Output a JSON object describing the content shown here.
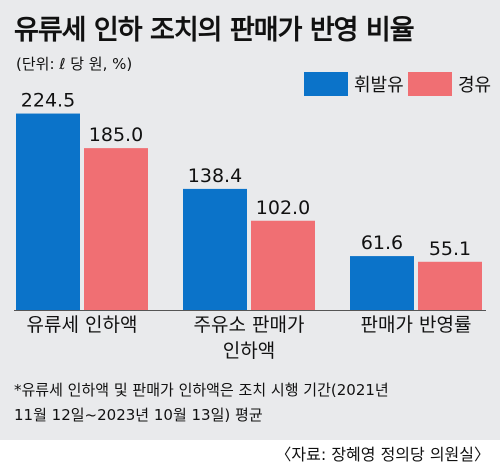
{
  "header": {
    "title": "유류세 인하 조치의 판매가 반영 비율",
    "unit": "(단위: ℓ 당 원, %)"
  },
  "legend": {
    "items": [
      {
        "label": "휘발유",
        "color": "#0b73c9"
      },
      {
        "label": "경유",
        "color": "#f06f73"
      }
    ]
  },
  "chart_data": {
    "type": "bar",
    "categories": [
      [
        "유류세 인하액"
      ],
      [
        "주유소 판매가",
        "인하액"
      ],
      [
        "판매가 반영률"
      ]
    ],
    "series": [
      {
        "name": "휘발유",
        "color": "#0b73c9",
        "values": [
          224.5,
          138.4,
          61.6
        ],
        "labels": [
          "224.5",
          "138.4",
          "61.6"
        ]
      },
      {
        "name": "경유",
        "color": "#f06f73",
        "values": [
          185.0,
          102.0,
          55.1
        ],
        "labels": [
          "185.0",
          "102.0",
          "55.1"
        ]
      }
    ],
    "title": "유류세 인하 조치의 판매가 반영 비율",
    "xlabel": "",
    "ylabel": "",
    "grid": false,
    "legend_position": "top-right"
  },
  "footnote": {
    "line1": "*유류세 인하액 및 판매가 인하액은 조치 시행 기간(2021년",
    "line2": "11월 12일~2023년 10월 13일) 평균"
  },
  "source": "〈자료: 장혜영 정의당 의원실〉"
}
